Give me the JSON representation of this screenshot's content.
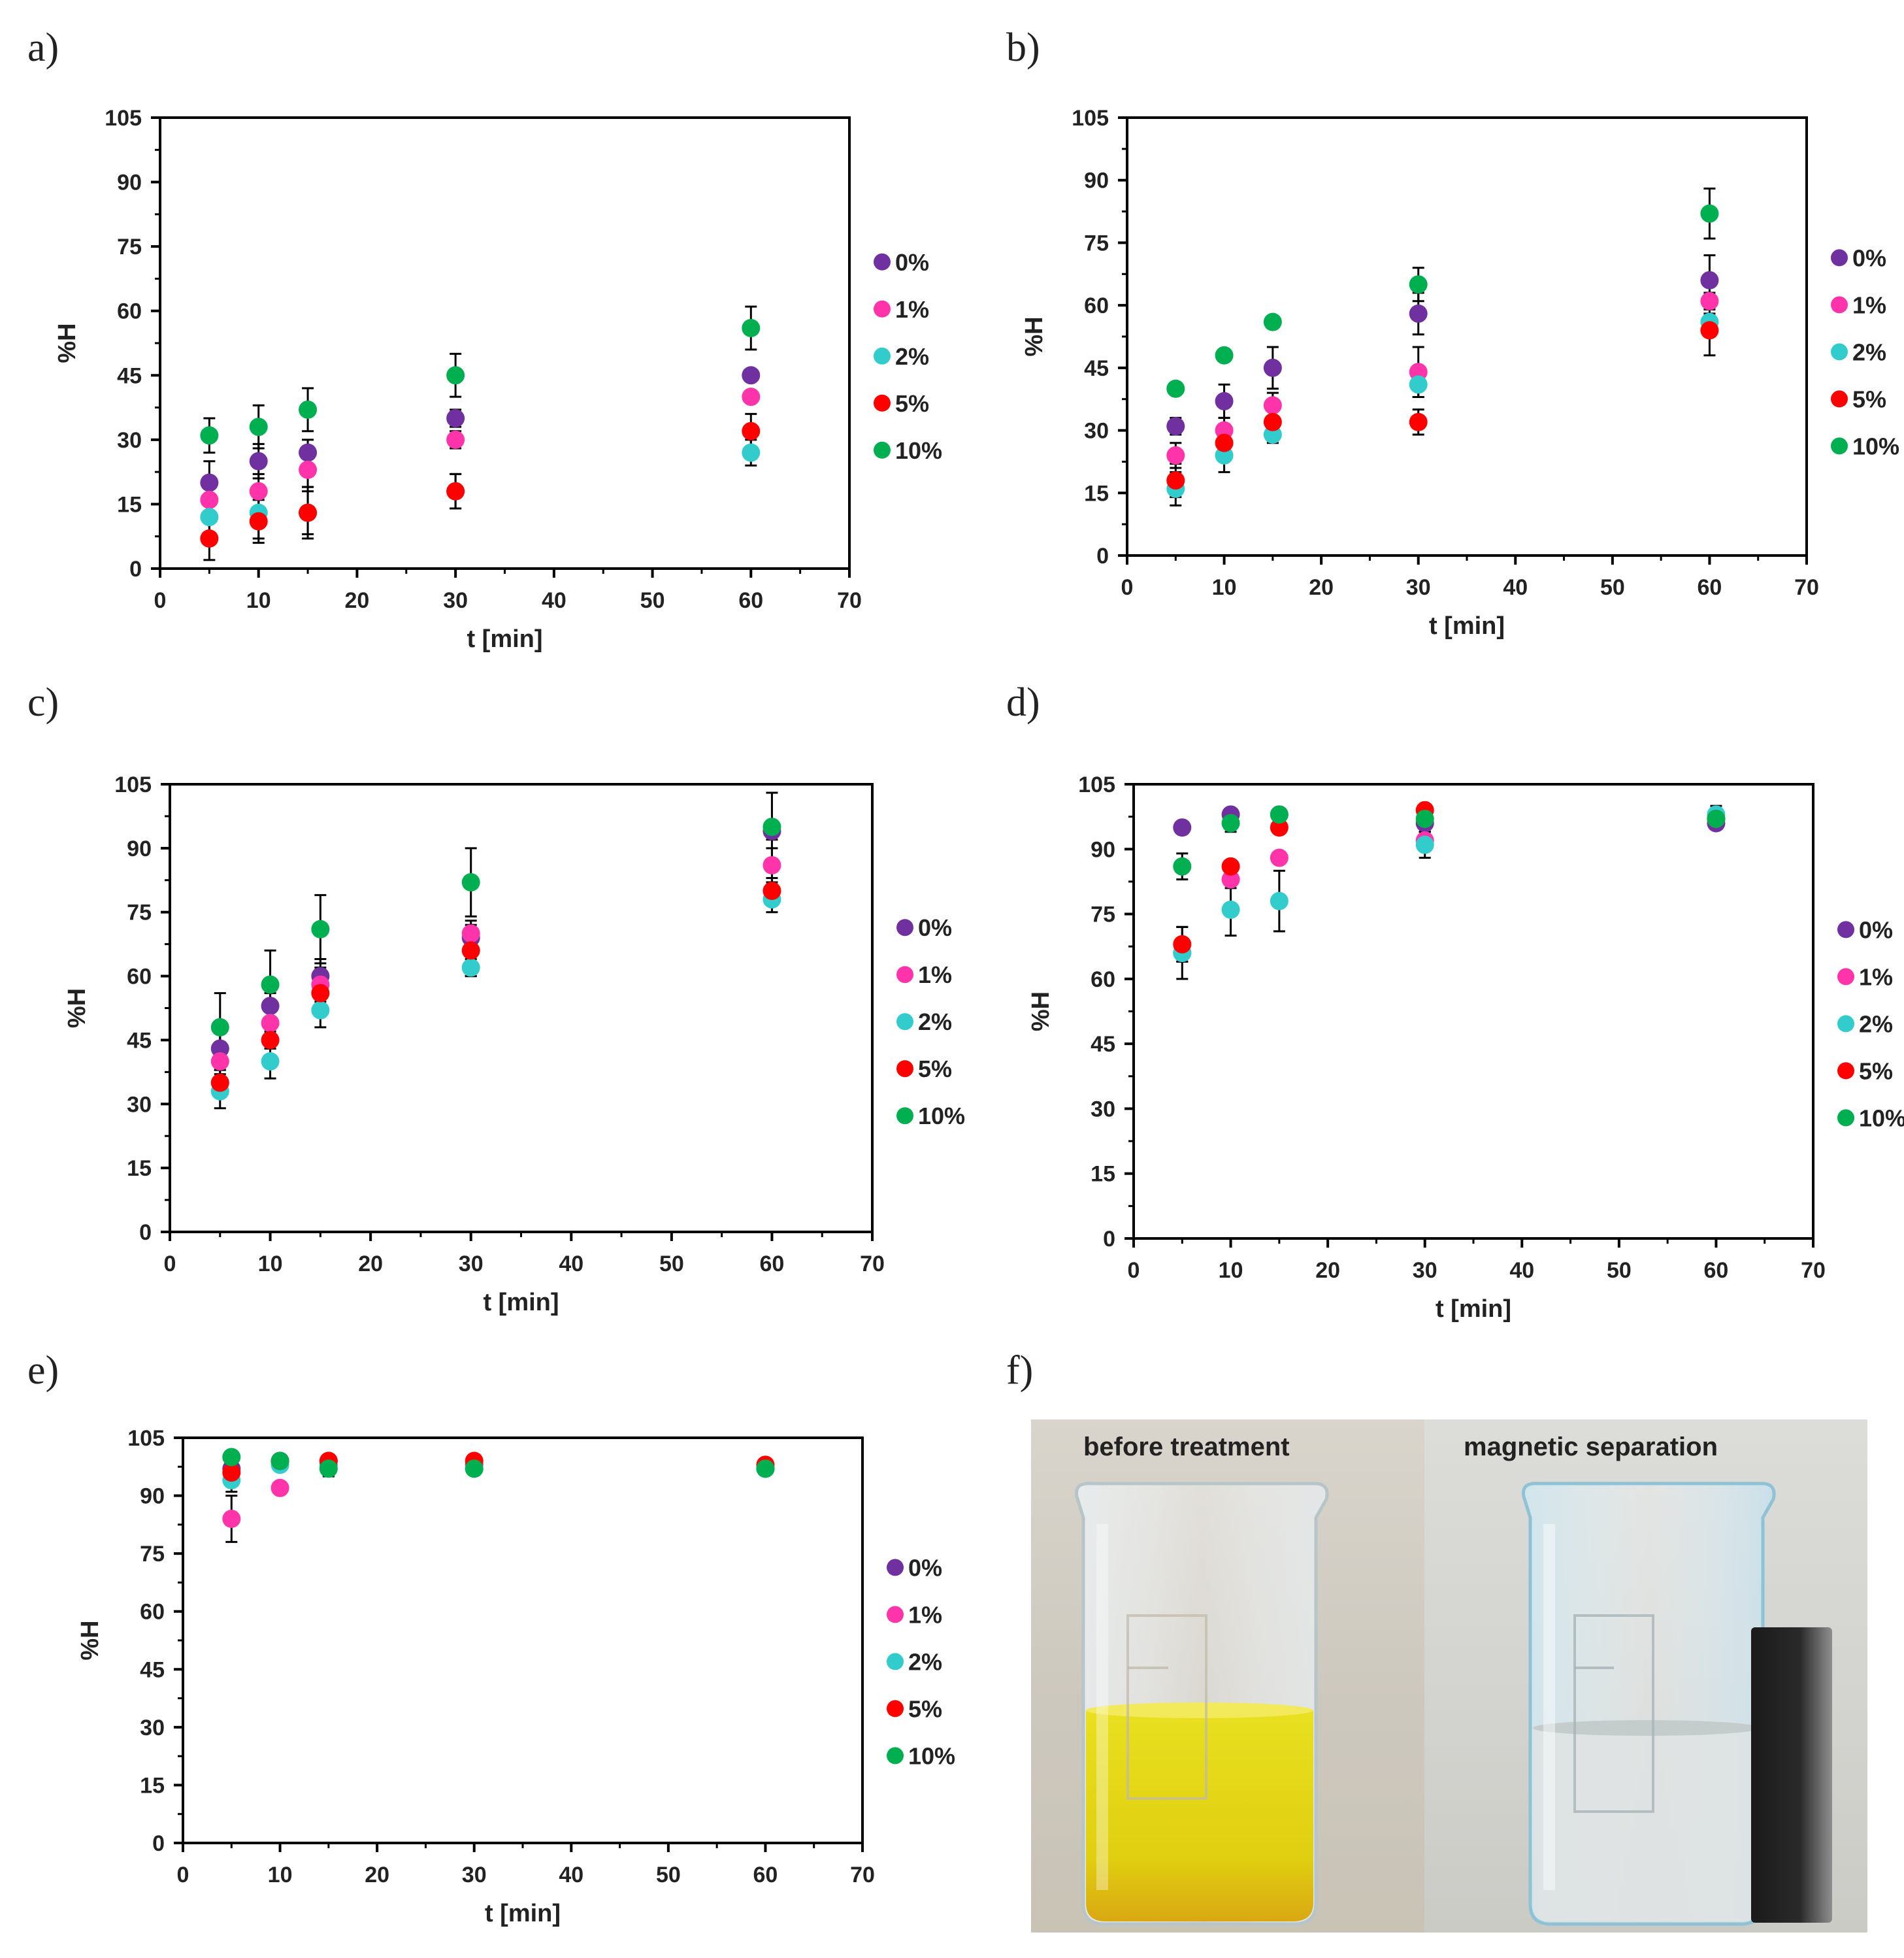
{
  "panels": [
    {
      "letter": "a)"
    },
    {
      "letter": "b)"
    },
    {
      "letter": "c)"
    },
    {
      "letter": "d)"
    },
    {
      "letter": "e)"
    },
    {
      "letter": "f)"
    }
  ],
  "colors": {
    "0%": "#7030a0",
    "1%": "#ff33aa",
    "2%": "#33cccc",
    "5%": "#ff0000",
    "10%": "#00b050"
  },
  "chart_data": [
    {
      "panel": "a)",
      "type": "scatter",
      "xlabel": "t [min]",
      "ylabel": "%H",
      "xlim": [
        0,
        70
      ],
      "ylim": [
        0,
        105
      ],
      "xticks": [
        "0",
        "10",
        "20",
        "30",
        "40",
        "50",
        "60",
        "70"
      ],
      "yticks": [
        "0",
        "15",
        "30",
        "45",
        "60",
        "75",
        "90",
        "105"
      ],
      "legend_position": "right",
      "x": [
        5,
        10,
        15,
        30,
        60
      ],
      "series": [
        {
          "name": "0%",
          "values": [
            20,
            25,
            27,
            35,
            45
          ],
          "errors": [
            5,
            4,
            3,
            2,
            1
          ]
        },
        {
          "name": "1%",
          "values": [
            16,
            18,
            23,
            30,
            40
          ],
          "errors": [
            5,
            4,
            4,
            2,
            1
          ]
        },
        {
          "name": "2%",
          "values": [
            12,
            13,
            13,
            18,
            27
          ],
          "errors": [
            5,
            6,
            6,
            4,
            3
          ]
        },
        {
          "name": "5%",
          "values": [
            7,
            11,
            13,
            18,
            32
          ],
          "errors": [
            5,
            5,
            5,
            4,
            4
          ]
        },
        {
          "name": "10%",
          "values": [
            31,
            33,
            37,
            45,
            56
          ],
          "errors": [
            4,
            5,
            5,
            5,
            5
          ]
        }
      ]
    },
    {
      "panel": "b)",
      "type": "scatter",
      "xlabel": "t [min]",
      "ylabel": "%H",
      "xlim": [
        0,
        70
      ],
      "ylim": [
        0,
        105
      ],
      "xticks": [
        "0",
        "10",
        "20",
        "30",
        "40",
        "50",
        "60",
        "70"
      ],
      "yticks": [
        "0",
        "15",
        "30",
        "45",
        "60",
        "75",
        "90",
        "105"
      ],
      "legend_position": "right",
      "x": [
        5,
        10,
        15,
        30,
        60
      ],
      "series": [
        {
          "name": "0%",
          "values": [
            31,
            37,
            45,
            58,
            66
          ],
          "errors": [
            2,
            4,
            5,
            5,
            6
          ]
        },
        {
          "name": "1%",
          "values": [
            24,
            30,
            36,
            44,
            61
          ],
          "errors": [
            3,
            3,
            3,
            6,
            2
          ]
        },
        {
          "name": "2%",
          "values": [
            16,
            24,
            29,
            41,
            56
          ],
          "errors": [
            4,
            4,
            2,
            3,
            2
          ]
        },
        {
          "name": "5%",
          "values": [
            18,
            27,
            32,
            32,
            54
          ],
          "errors": [
            4,
            4,
            3,
            3,
            6
          ]
        },
        {
          "name": "10%",
          "values": [
            40,
            48,
            56,
            65,
            82
          ],
          "errors": [
            1,
            1,
            1,
            4,
            6
          ]
        }
      ]
    },
    {
      "panel": "c)",
      "type": "scatter",
      "xlabel": "t [min]",
      "ylabel": "%H",
      "xlim": [
        0,
        70
      ],
      "ylim": [
        0,
        105
      ],
      "xticks": [
        "0",
        "10",
        "20",
        "30",
        "40",
        "50",
        "60",
        "70"
      ],
      "yticks": [
        "0",
        "15",
        "30",
        "45",
        "60",
        "75",
        "90",
        "105"
      ],
      "legend_position": "right",
      "x": [
        5,
        10,
        15,
        30,
        60
      ],
      "series": [
        {
          "name": "0%",
          "values": [
            43,
            53,
            60,
            69,
            94
          ],
          "errors": [
            5,
            3,
            4,
            2,
            2
          ]
        },
        {
          "name": "1%",
          "values": [
            40,
            49,
            58,
            70,
            86
          ],
          "errors": [
            4,
            4,
            4,
            3,
            4
          ]
        },
        {
          "name": "2%",
          "values": [
            33,
            40,
            52,
            62,
            78
          ],
          "errors": [
            4,
            4,
            4,
            2,
            3
          ]
        },
        {
          "name": "5%",
          "values": [
            35,
            45,
            56,
            66,
            80
          ],
          "errors": [
            3,
            2,
            5,
            6,
            3
          ]
        },
        {
          "name": "10%",
          "values": [
            48,
            58,
            71,
            82,
            95
          ],
          "errors": [
            8,
            8,
            8,
            8,
            8
          ]
        }
      ]
    },
    {
      "panel": "d)",
      "type": "scatter",
      "xlabel": "t [min]",
      "ylabel": "%H",
      "xlim": [
        0,
        70
      ],
      "ylim": [
        0,
        105
      ],
      "xticks": [
        "0",
        "10",
        "20",
        "30",
        "40",
        "50",
        "60",
        "70"
      ],
      "yticks": [
        "0",
        "15",
        "30",
        "45",
        "60",
        "75",
        "90",
        "105"
      ],
      "legend_position": "right",
      "x": [
        5,
        10,
        15,
        30,
        60
      ],
      "series": [
        {
          "name": "0%",
          "values": [
            95,
            98,
            98,
            96,
            96
          ],
          "errors": [
            1,
            1,
            1,
            2,
            1
          ]
        },
        {
          "name": "1%",
          "values": [
            66,
            83,
            88,
            92,
            97
          ],
          "errors": [
            2,
            2,
            1,
            2,
            1
          ]
        },
        {
          "name": "2%",
          "values": [
            66,
            76,
            78,
            91,
            98
          ],
          "errors": [
            6,
            6,
            7,
            3,
            2
          ]
        },
        {
          "name": "5%",
          "values": [
            68,
            86,
            95,
            99,
            97
          ],
          "errors": [
            4,
            1,
            1,
            1,
            1
          ]
        },
        {
          "name": "10%",
          "values": [
            86,
            96,
            98,
            97,
            97
          ],
          "errors": [
            3,
            2,
            1,
            1,
            1
          ]
        }
      ]
    },
    {
      "panel": "e)",
      "type": "scatter",
      "xlabel": "t [min]",
      "ylabel": "%H",
      "xlim": [
        0,
        70
      ],
      "ylim": [
        0,
        105
      ],
      "xticks": [
        "0",
        "10",
        "20",
        "30",
        "40",
        "50",
        "60",
        "70"
      ],
      "yticks": [
        "0",
        "15",
        "30",
        "45",
        "60",
        "75",
        "90",
        "105"
      ],
      "legend_position": "right",
      "x": [
        5,
        10,
        15,
        30,
        60
      ],
      "series": [
        {
          "name": "0%",
          "values": [
            97,
            99,
            99,
            98,
            97
          ],
          "errors": [
            1,
            1,
            1,
            1,
            1
          ]
        },
        {
          "name": "1%",
          "values": [
            84,
            92,
            98,
            98,
            97
          ],
          "errors": [
            6,
            1,
            1,
            1,
            1
          ]
        },
        {
          "name": "2%",
          "values": [
            94,
            98,
            98,
            97,
            97
          ],
          "errors": [
            3,
            1,
            1,
            1,
            1
          ]
        },
        {
          "name": "5%",
          "values": [
            96,
            99,
            99,
            99,
            98
          ],
          "errors": [
            2,
            1,
            1,
            1,
            1
          ]
        },
        {
          "name": "10%",
          "values": [
            100,
            99,
            97,
            97,
            97
          ],
          "errors": [
            1,
            1,
            2,
            1,
            1
          ]
        }
      ]
    }
  ],
  "photo": {
    "left_label": "before treatment",
    "right_label": "magnetic separation"
  }
}
